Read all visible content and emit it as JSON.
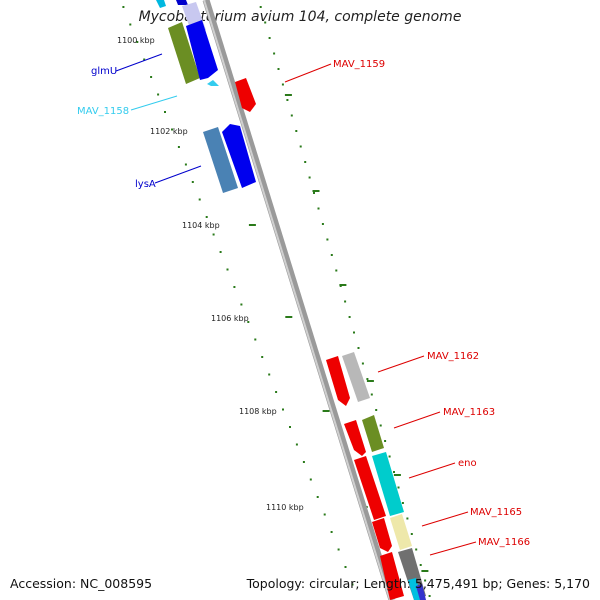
{
  "title": "Mycobacterium avium 104, complete genome",
  "footer": {
    "accession": "Accession: NC_008595",
    "summary": "Topology: circular; Length: 5,475,491 bp; Genes: 5,170"
  },
  "scale_labels": [
    "1100 kbp",
    "1102 kbp",
    "1104 kbp",
    "1106 kbp",
    "1108 kbp",
    "1110 kbp"
  ],
  "genes": [
    {
      "name": "glmU",
      "color": "#0000cc"
    },
    {
      "name": "MAV_1158",
      "color": "#33ccee"
    },
    {
      "name": "MAV_1159",
      "color": "#dd0000"
    },
    {
      "name": "lysA",
      "color": "#0000cc"
    },
    {
      "name": "MAV_1162",
      "color": "#dd0000"
    },
    {
      "name": "MAV_1163",
      "color": "#dd0000"
    },
    {
      "name": "eno",
      "color": "#dd0000"
    },
    {
      "name": "MAV_1165",
      "color": "#dd0000"
    },
    {
      "name": "MAV_1166",
      "color": "#dd0000"
    }
  ],
  "colors": {
    "backbone": "#888888",
    "scale_tick": "#2a7a1a",
    "feature_red": "#ee0000",
    "feature_blue": "#0000ee",
    "feature_steelblue": "#4a82b4",
    "feature_olive": "#6b8e23",
    "feature_cyan": "#00cccc",
    "feature_grey": "#b0b0b0",
    "feature_khaki": "#eee8aa",
    "feature_lavender": "#c8c8f0",
    "feature_darkgrey": "#707070"
  }
}
